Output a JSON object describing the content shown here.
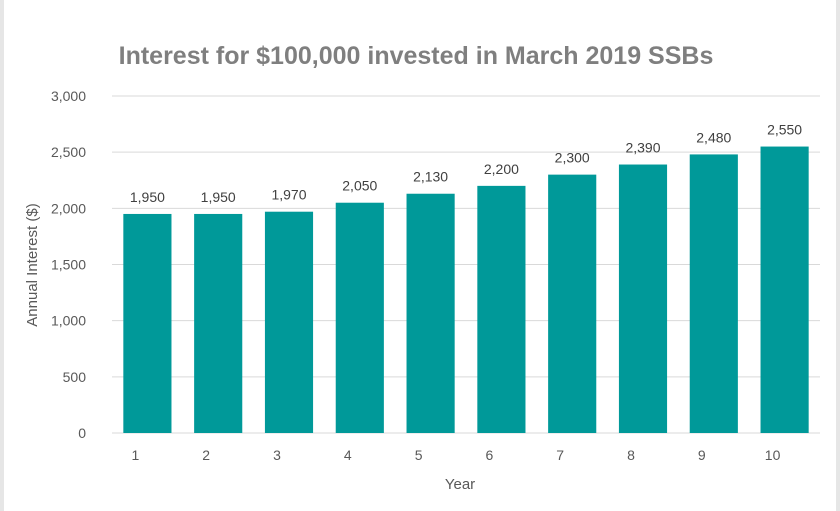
{
  "chart_data": {
    "type": "bar",
    "title": "Interest for $100,000 invested in March 2019 SSBs",
    "xlabel": "Year",
    "ylabel": "Annual Interest ($)",
    "categories": [
      "1",
      "2",
      "3",
      "4",
      "5",
      "6",
      "7",
      "8",
      "9",
      "10"
    ],
    "values": [
      1950,
      1950,
      1970,
      2050,
      2130,
      2200,
      2300,
      2390,
      2480,
      2550
    ],
    "data_labels": [
      "1,950",
      "1,950",
      "1,970",
      "2,050",
      "2,130",
      "2,200",
      "2,300",
      "2,390",
      "2,480",
      "2,550"
    ],
    "ylim": [
      0,
      3000
    ],
    "yticks": [
      0,
      500,
      1000,
      1500,
      2000,
      2500,
      3000
    ],
    "ytick_labels": [
      "0",
      "500",
      "1,000",
      "1,500",
      "2,000",
      "2,500",
      "3,000"
    ],
    "grid": true,
    "bar_color": "#009999"
  }
}
